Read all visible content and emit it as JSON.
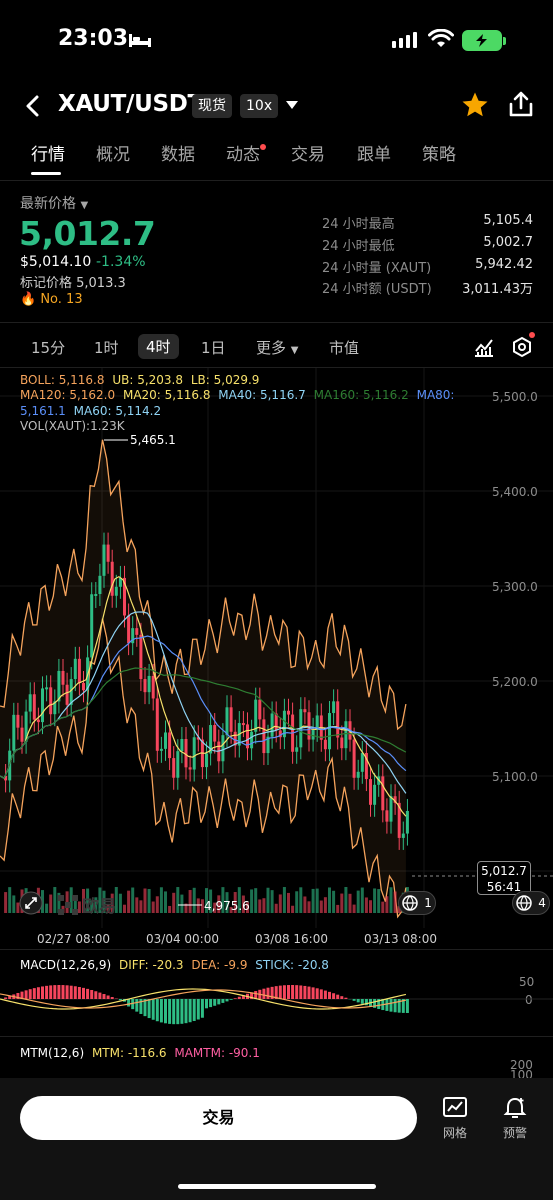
{
  "status_bar": {
    "time": "23:03"
  },
  "header": {
    "pair": "XAUT/USDT",
    "market_tag": "现货",
    "leverage_tag": "10x"
  },
  "tabs": [
    "行情",
    "概况",
    "数据",
    "动态",
    "交易",
    "跟单",
    "策略"
  ],
  "price": {
    "label": "最新价格",
    "last": "5,012.7",
    "usd": "$5,014.10",
    "change": "-1.34%",
    "mark_price": "标记价格 5,013.3",
    "rank": "No. 13"
  },
  "stats": [
    {
      "label": "24 小时最高",
      "value": "5,105.4"
    },
    {
      "label": "24 小时最低",
      "value": "5,002.7"
    },
    {
      "label": "24 小时量 (XAUT)",
      "value": "5,942.42"
    },
    {
      "label": "24 小时额 (USDT)",
      "value": "3,011.43万"
    }
  ],
  "timeframes": [
    "15分",
    "1时",
    "4时",
    "1日",
    "更多",
    "市值"
  ],
  "chart": {
    "boll": "BOLL: 5,116.8",
    "ub": "UB: 5,203.8",
    "lb": "LB: 5,029.9",
    "ma120": "MA120: 5,162.0",
    "ma20": "MA20: 5,116.8",
    "ma40": "MA40: 5,116.7",
    "ma160": "MA160: 5,116.2",
    "ma80": "MA80:",
    "ma80_value": "5,161.1",
    "ma60": "MA60: 5,114.2",
    "vol": "VOL(XAUT):1.23K",
    "high_label": "5,465.1",
    "low_label": "4,975.6",
    "current_price": "5,012.7",
    "countdown": "56:41",
    "watermark": "欧易",
    "badge_left": "1",
    "badge_right": "4",
    "y_ticks": [
      "5,500.0",
      "5,400.0",
      "5,300.0",
      "5,200.0",
      "5,100.0"
    ],
    "x_ticks": [
      "02/27 08:00",
      "03/04 00:00",
      "03/08 16:00",
      "03/13 08:00"
    ],
    "colors": {
      "up": "#2ebd85",
      "down": "#f6465d",
      "boll": "#f5a35c",
      "ma20": "#f7e16b",
      "ma40": "#5b8ff9",
      "ma60": "#8fd3f4",
      "ma160": "#2e7d32"
    }
  },
  "macd": {
    "title": "MACD(12,26,9)",
    "diff": "DIFF: -20.3",
    "dea": "DEA: -9.9",
    "stick": "STICK: -20.8",
    "y_ticks": [
      "50",
      "0"
    ]
  },
  "mtm": {
    "title": "MTM(12,6)",
    "mtm": "MTM: -116.6",
    "mamtm": "MAMTM: -90.1",
    "y_ticks": [
      "200",
      "100"
    ]
  },
  "bottom": {
    "trade": "交易",
    "grid": "网格",
    "alert": "预警"
  }
}
